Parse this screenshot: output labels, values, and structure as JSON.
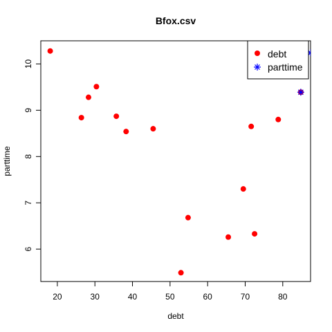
{
  "chart_data": {
    "type": "scatter",
    "title": "Bfox.csv",
    "xlabel": "debt",
    "ylabel": "parttime",
    "xlim": [
      15.6,
      87.4
    ],
    "ylim": [
      5.3,
      10.5
    ],
    "x_ticks": [
      20,
      30,
      40,
      50,
      60,
      70,
      80
    ],
    "y_ticks": [
      6,
      7,
      8,
      9,
      10
    ],
    "legend": {
      "placement": "top-right",
      "entries": [
        {
          "label": "debt",
          "symbol": "filled-circle",
          "color": "#ff0000"
        },
        {
          "label": "parttime",
          "symbol": "asterisk",
          "color": "#0000ff"
        }
      ]
    },
    "series": [
      {
        "name": "debt",
        "color": "#ff0000",
        "symbol": "filled-circle",
        "points": [
          {
            "x": 18.1,
            "y": 10.28
          },
          {
            "x": 26.4,
            "y": 8.84
          },
          {
            "x": 28.3,
            "y": 9.28
          },
          {
            "x": 30.4,
            "y": 9.51
          },
          {
            "x": 35.7,
            "y": 8.87
          },
          {
            "x": 38.3,
            "y": 8.54
          },
          {
            "x": 45.5,
            "y": 8.6
          },
          {
            "x": 52.9,
            "y": 5.49
          },
          {
            "x": 54.8,
            "y": 6.68
          },
          {
            "x": 65.5,
            "y": 6.26
          },
          {
            "x": 69.5,
            "y": 7.3
          },
          {
            "x": 71.6,
            "y": 8.65
          },
          {
            "x": 72.5,
            "y": 6.33
          },
          {
            "x": 78.8,
            "y": 8.8
          },
          {
            "x": 84.8,
            "y": 9.39
          }
        ]
      },
      {
        "name": "parttime",
        "color": "#0000ff",
        "symbol": "asterisk",
        "points": [
          {
            "x": 84.8,
            "y": 9.39
          },
          {
            "x": 87.4,
            "y": 10.24
          }
        ]
      }
    ]
  }
}
